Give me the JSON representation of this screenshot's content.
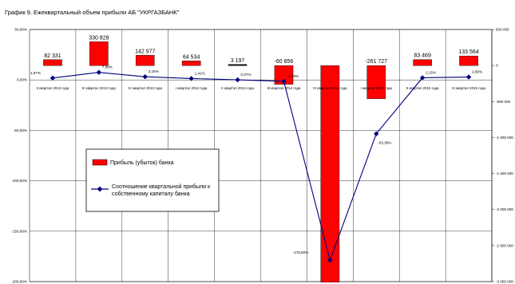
{
  "chart_data": {
    "type": "bar",
    "title": "График 9. Ежеквартальный объем прибыли АБ \"УКРГАЗБАНК\"",
    "categories": [
      "II квартал 2013 года",
      "III квартал 2013 года",
      "IV квартал 2013 года",
      "I квартал 2014 года",
      "II квартал 2014 года",
      "III квартал 2014 года",
      "IV квартал 2014 года",
      "I квартал 2015 года",
      "II квартал 2015 года",
      "III квартал 2015 года"
    ],
    "series": [
      {
        "name": "Прибыль (убыток) банка",
        "axis": "right",
        "color": "#ff0000",
        "values": [
          82331,
          330828,
          142977,
          64534,
          3197,
          -60856,
          -2808000,
          -261727,
          83469,
          133564
        ],
        "labels": [
          "82 331",
          "330 828",
          "142 977",
          "64 534",
          "3 197",
          "-60 856",
          "-2 808 000",
          "-261 727",
          "83 469",
          "133 564"
        ]
      },
      {
        "name": "Соотношение квартальной прибыли к собственному капиталу банка",
        "axis": "left",
        "color": "#00007f",
        "values": [
          1.87,
          7.49,
          3.16,
          1.41,
          0.07,
          -1.39,
          -178.8,
          -53.36,
          2.15,
          2.89
        ],
        "labels": [
          "1,87%",
          "7,49%",
          "3,16%",
          "1,41%",
          "0,07%",
          "-1,39%",
          "-178,80%",
          "-53,36%",
          "2,15%",
          "2,89%"
        ]
      }
    ],
    "left_axis": {
      "ylim": [
        -200,
        50
      ],
      "ticks": [
        "50,00%",
        "0,00%",
        "-50,00%",
        "-100,00%",
        "-150,00%",
        "-200,00%"
      ]
    },
    "right_axis": {
      "ylim": [
        -3000000,
        500000
      ],
      "ticks": [
        "500 000",
        "0",
        "-500 000",
        "-1 000 000",
        "-1 500 000",
        "-2 000 000",
        "-2 500 000",
        "-3 000 000"
      ]
    },
    "grid": true,
    "legend_position": "center-left"
  }
}
